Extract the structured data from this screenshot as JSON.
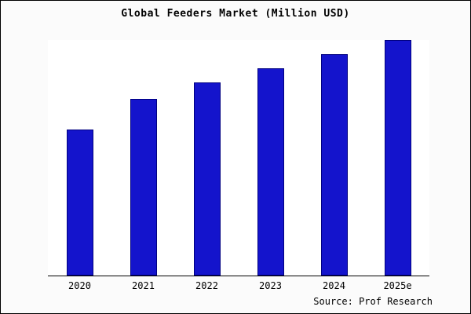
{
  "page": {
    "source_note": "Source: Prof Research"
  },
  "chart_data": {
    "type": "bar",
    "title": "Global Feeders Market (Million USD)",
    "categories": [
      "2020",
      "2021",
      "2022",
      "2023",
      "2024",
      "2025e"
    ],
    "values": [
      62,
      75,
      82,
      88,
      94,
      100
    ],
    "xlabel": "",
    "ylabel": "",
    "ylim": [
      0,
      100
    ],
    "grid": false,
    "legend": false,
    "colors": {
      "bar_fill": "#1414cc",
      "bar_border": "#000080",
      "axis": "#000000"
    }
  }
}
